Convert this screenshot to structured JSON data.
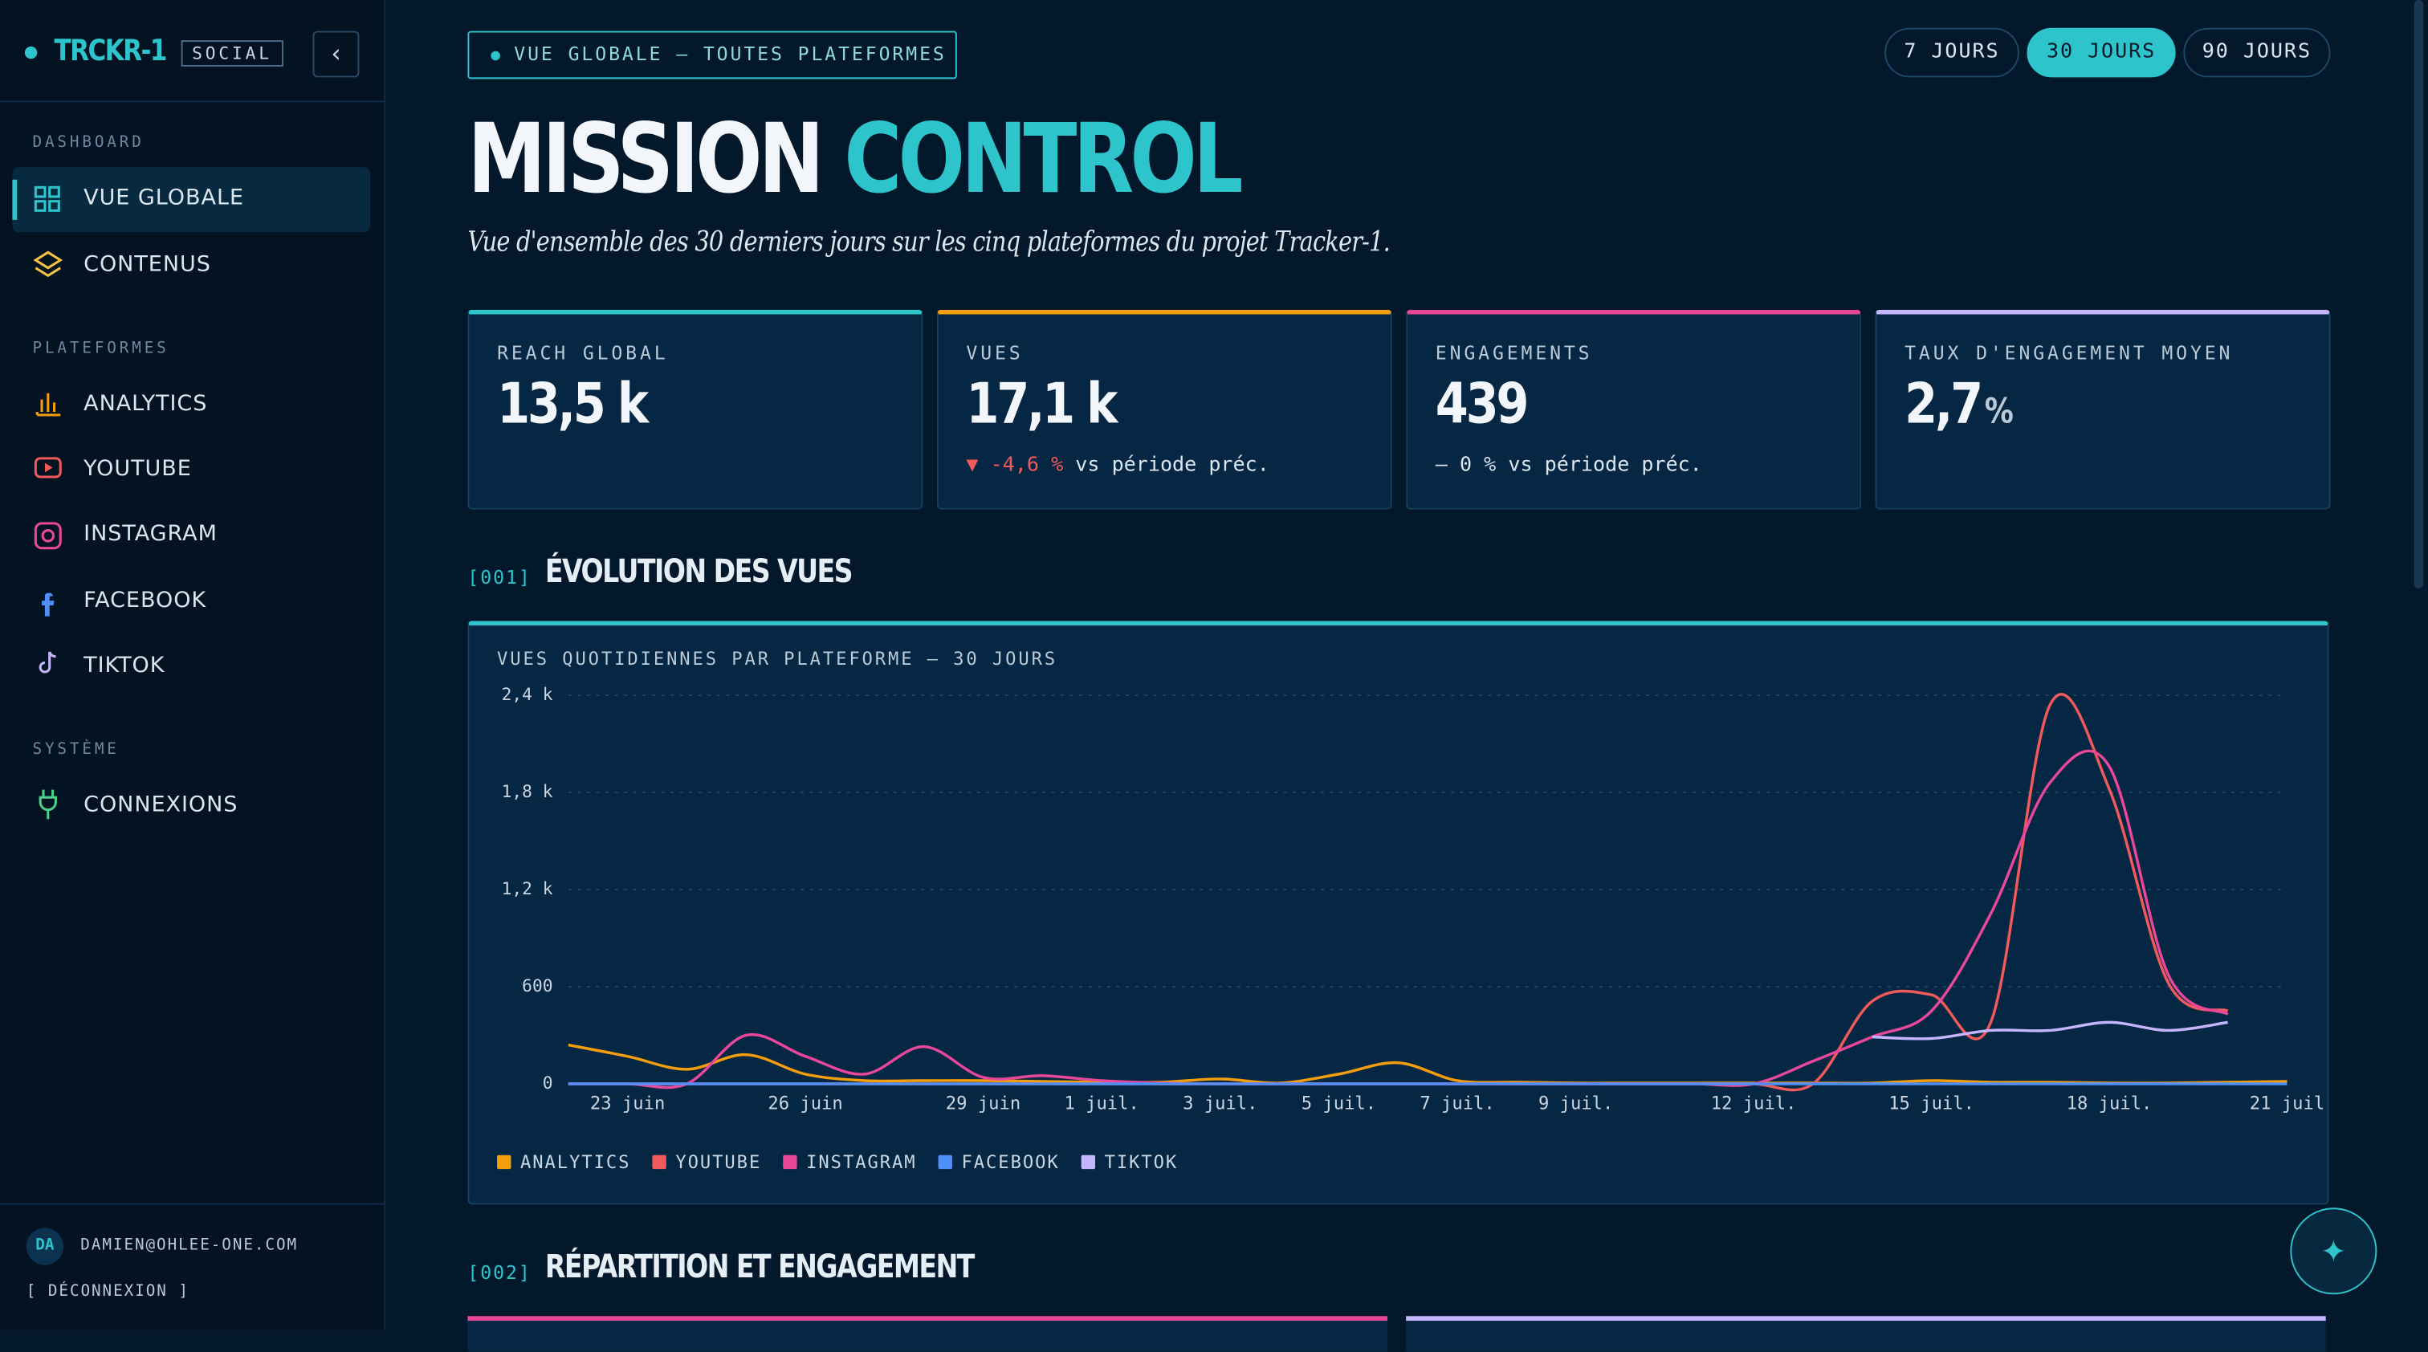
{
  "sidebar": {
    "brand": "TRCKR-1",
    "badge": "SOCIAL",
    "sections": [
      {
        "title": "DASHBOARD",
        "items": [
          "VUE GLOBALE",
          "CONTENUS"
        ]
      },
      {
        "title": "PLATEFORMES",
        "items": [
          "ANALYTICS",
          "YOUTUBE",
          "INSTAGRAM",
          "FACEBOOK",
          "TIKTOK"
        ]
      },
      {
        "title": "SYSTÈME",
        "items": [
          "CONNEXIONS"
        ]
      }
    ],
    "user": {
      "initials": "DA",
      "email": "DAMIEN@OHLEE-ONE.COM",
      "logout": "[ DÉCONNEXION ]"
    }
  },
  "header": {
    "pill": "VUE GLOBALE — TOUTES PLATEFORMES",
    "title_a": "MISSION",
    "title_b": "CONTROL",
    "subtitle": "Vue d'ensemble des 30 derniers jours sur les cinq plateformes du projet Tracker-1.",
    "ranges": [
      "7 JOURS",
      "30 JOURS",
      "90 JOURS"
    ]
  },
  "kpis": [
    {
      "label": "REACH GLOBAL",
      "value": "13,5 k"
    },
    {
      "label": "VUES",
      "value": "17,1 k",
      "delta": "▼ -4,6 %",
      "note": "vs période préc."
    },
    {
      "label": "ENGAGEMENTS",
      "value": "439",
      "delta": "— 0 %",
      "note": "vs période préc."
    },
    {
      "label": "TAUX D'ENGAGEMENT MOYEN",
      "value": "2,7",
      "unit": "%"
    }
  ],
  "sections": [
    {
      "num": "[001]",
      "title": "ÉVOLUTION DES VUES"
    },
    {
      "num": "[002]",
      "title": "RÉPARTITION ET ENGAGEMENT"
    }
  ],
  "chart_data": {
    "type": "line",
    "title": "VUES QUOTIDIENNES PAR PLATEFORME — 30 JOURS",
    "categories": [
      null,
      "23 juin",
      null,
      null,
      "26 juin",
      null,
      null,
      "29 juin",
      null,
      "1 juil.",
      null,
      "3 juil.",
      null,
      "5 juil.",
      null,
      "7 juil.",
      null,
      "9 juil.",
      null,
      null,
      "12 juil.",
      null,
      null,
      "15 juil.",
      null,
      null,
      "18 juil.",
      null,
      null,
      "21 juil"
    ],
    "ylim": [
      0,
      2400
    ],
    "yticks": [
      0,
      600,
      {
        "value": 1200,
        "label": "1,2 k"
      },
      {
        "value": 1800,
        "label": "1,8 k"
      },
      {
        "value": 2400,
        "label": "2,4 k"
      }
    ],
    "grid": true,
    "series": [
      {
        "name": "ANALYTICS",
        "color": "#f59e0b",
        "values": [
          240,
          170,
          90,
          180,
          60,
          20,
          20,
          20,
          15,
          10,
          10,
          30,
          5,
          60,
          130,
          20,
          10,
          5,
          5,
          5,
          5,
          5,
          5,
          20,
          10,
          10,
          5,
          5,
          10,
          15
        ]
      },
      {
        "name": "YOUTUBE",
        "color": "#f05a5a",
        "values": [
          0,
          0,
          0,
          0,
          0,
          0,
          0,
          0,
          0,
          0,
          0,
          0,
          0,
          0,
          0,
          0,
          0,
          0,
          0,
          0,
          0,
          0,
          510,
          550,
          380,
          2340,
          1820,
          620,
          450,
          null
        ]
      },
      {
        "name": "INSTAGRAM",
        "color": "#e8479a",
        "values": [
          0,
          0,
          0,
          300,
          170,
          60,
          230,
          40,
          50,
          20,
          5,
          0,
          0,
          0,
          0,
          0,
          0,
          0,
          0,
          0,
          0,
          140,
          290,
          450,
          1050,
          1860,
          1960,
          670,
          430,
          null
        ]
      },
      {
        "name": "FACEBOOK",
        "color": "#4f8ff7",
        "values": [
          0,
          0,
          0,
          0,
          0,
          0,
          0,
          0,
          0,
          0,
          0,
          0,
          0,
          0,
          0,
          0,
          0,
          0,
          0,
          0,
          0,
          0,
          0,
          0,
          0,
          0,
          0,
          0,
          0,
          0
        ]
      },
      {
        "name": "TIKTOK",
        "color": "#c4b5fd",
        "values": [
          null,
          null,
          null,
          null,
          null,
          null,
          null,
          null,
          null,
          null,
          null,
          null,
          null,
          null,
          null,
          null,
          null,
          null,
          null,
          null,
          null,
          null,
          290,
          280,
          330,
          330,
          380,
          330,
          380,
          null
        ]
      }
    ]
  }
}
